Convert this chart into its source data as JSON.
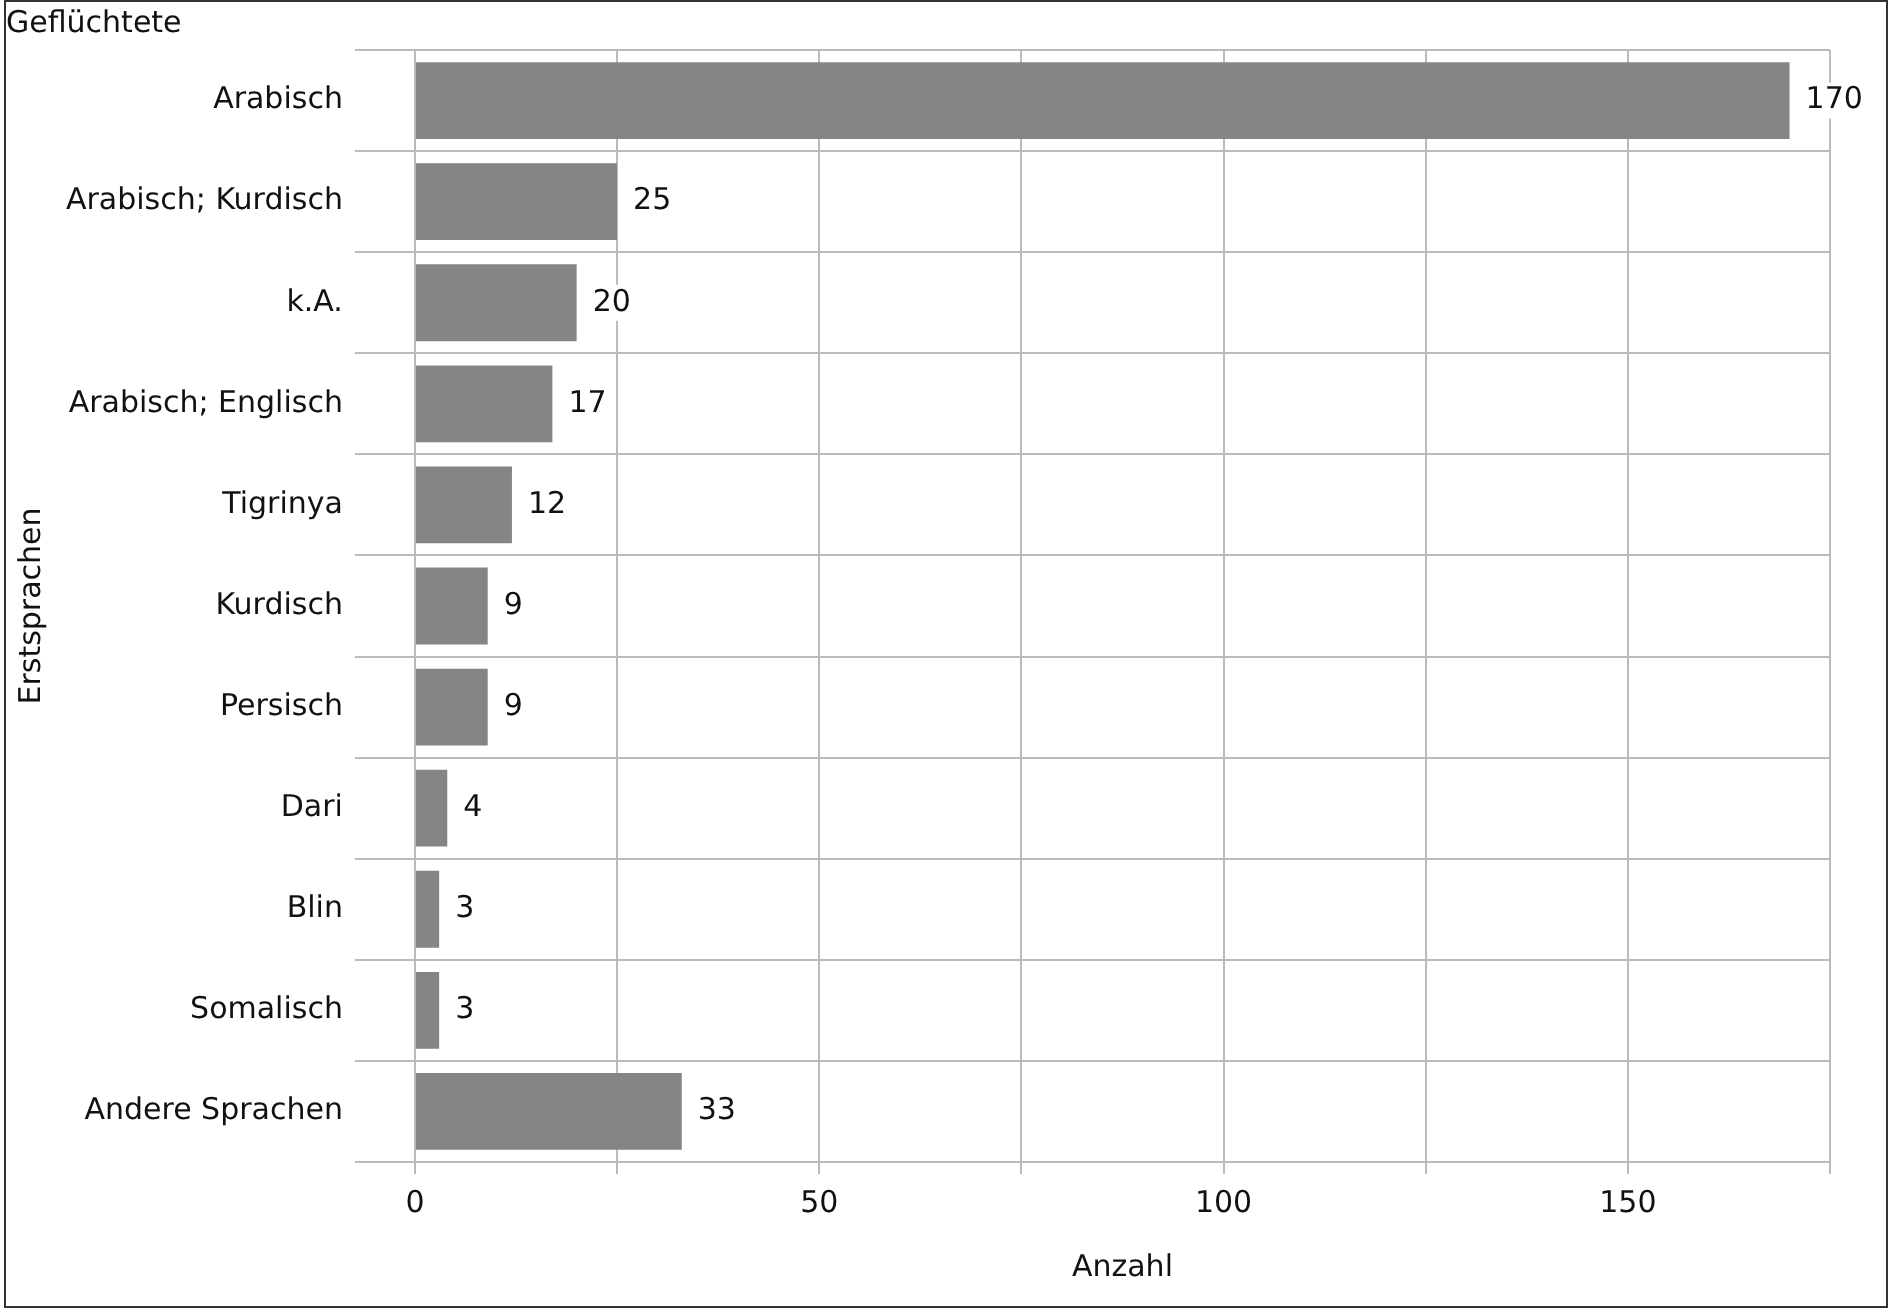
{
  "chart_data": {
    "type": "bar",
    "orientation": "horizontal",
    "title": "Geflüchtete",
    "xlabel": "Anzahl",
    "ylabel": "Erstsprachen",
    "categories": [
      "Arabisch",
      "Arabisch; Kurdisch",
      "k.A.",
      "Arabisch; Englisch",
      "Tigrinya",
      "Kurdisch",
      "Persisch",
      "Dari",
      "Blin",
      "Somalisch",
      "Andere Sprachen"
    ],
    "values": [
      170,
      25,
      20,
      17,
      12,
      9,
      9,
      4,
      3,
      3,
      33
    ],
    "color": "#858585",
    "xlim": [
      0,
      175
    ],
    "xticks": [
      0,
      {
        "value": 25,
        "label": null
      },
      50,
      {
        "value": 75,
        "label": null
      },
      100,
      {
        "value": 125,
        "label": null
      },
      150,
      {
        "value": 175,
        "label": null
      }
    ],
    "grid": true,
    "legend": false,
    "data_labels": true
  }
}
